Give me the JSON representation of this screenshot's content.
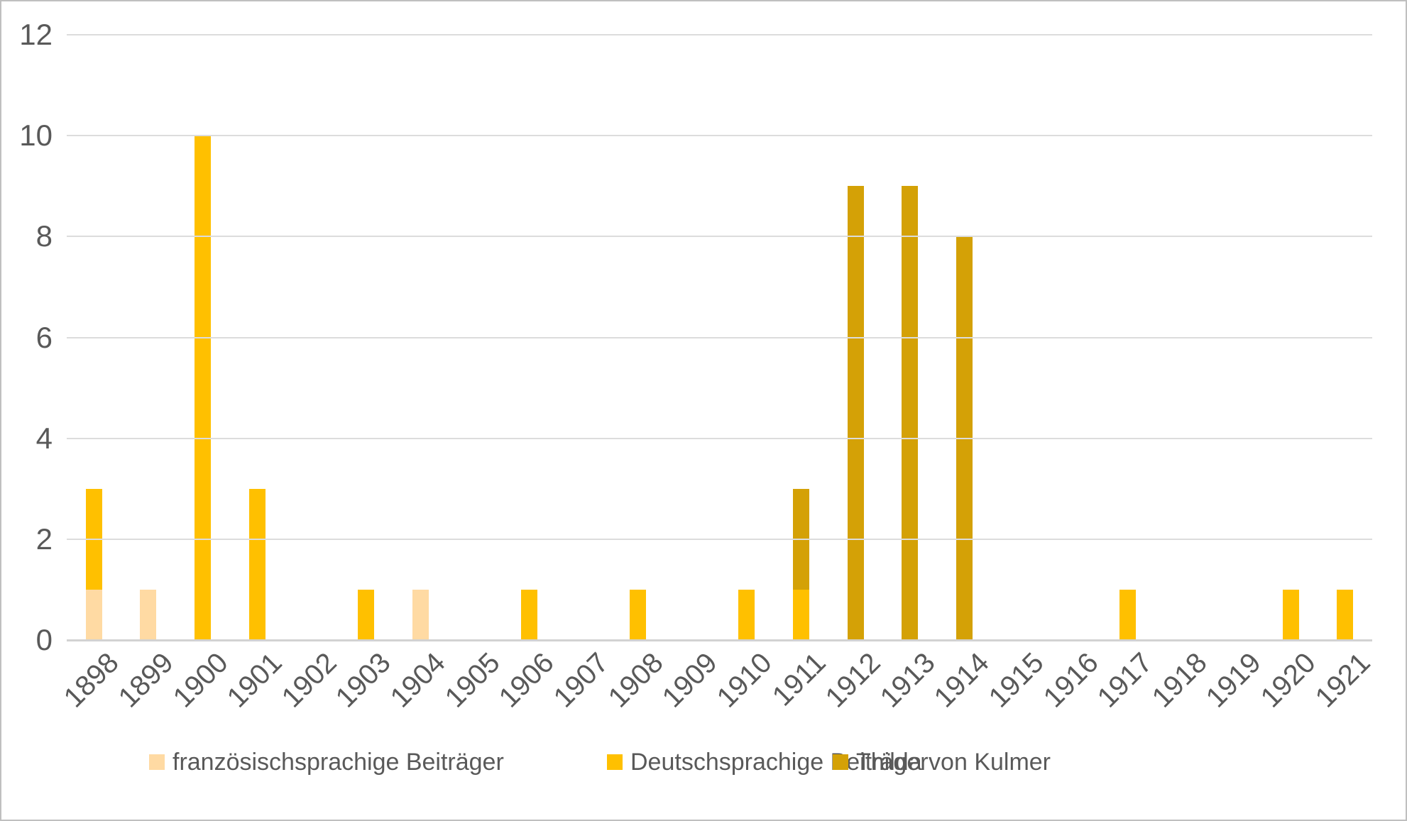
{
  "chart_data": {
    "type": "bar",
    "stacked": true,
    "title": "",
    "xlabel": "",
    "ylabel": "",
    "categories": [
      "1898",
      "1899",
      "1900",
      "1901",
      "1902",
      "1903",
      "1904",
      "1905",
      "1906",
      "1907",
      "1908",
      "1909",
      "1910",
      "1911",
      "1912",
      "1913",
      "1914",
      "1915",
      "1916",
      "1917",
      "1918",
      "1919",
      "1920",
      "1921"
    ],
    "series": [
      {
        "name": "französischsprachige Beiträger",
        "color": "#FFDAA3",
        "values": [
          1,
          1,
          0,
          0,
          0,
          0,
          1,
          0,
          0,
          0,
          0,
          0,
          0,
          0,
          0,
          0,
          0,
          0,
          0,
          0,
          0,
          0,
          0,
          0
        ]
      },
      {
        "name": "Deutschsprachige Beiträger",
        "color": "#FFC000",
        "values": [
          2,
          0,
          10,
          3,
          0,
          1,
          0,
          0,
          1,
          0,
          1,
          0,
          1,
          1,
          0,
          0,
          0,
          0,
          0,
          1,
          0,
          0,
          1,
          1
        ]
      },
      {
        "name": "Thilda von Kulmer",
        "color": "#D4A106",
        "values": [
          0,
          0,
          0,
          0,
          0,
          0,
          0,
          0,
          0,
          0,
          0,
          0,
          0,
          2,
          9,
          9,
          8,
          0,
          0,
          0,
          0,
          0,
          0,
          0
        ]
      }
    ],
    "ylim": [
      0,
      12
    ],
    "yticks": [
      0,
      2,
      4,
      6,
      8,
      10,
      12
    ],
    "grid": true,
    "legend_position": "bottom"
  },
  "colors": {
    "background": "#FFFFFF",
    "border": "#BFBFBF",
    "gridline": "#DCDCDC",
    "axis_text": "#595959"
  }
}
